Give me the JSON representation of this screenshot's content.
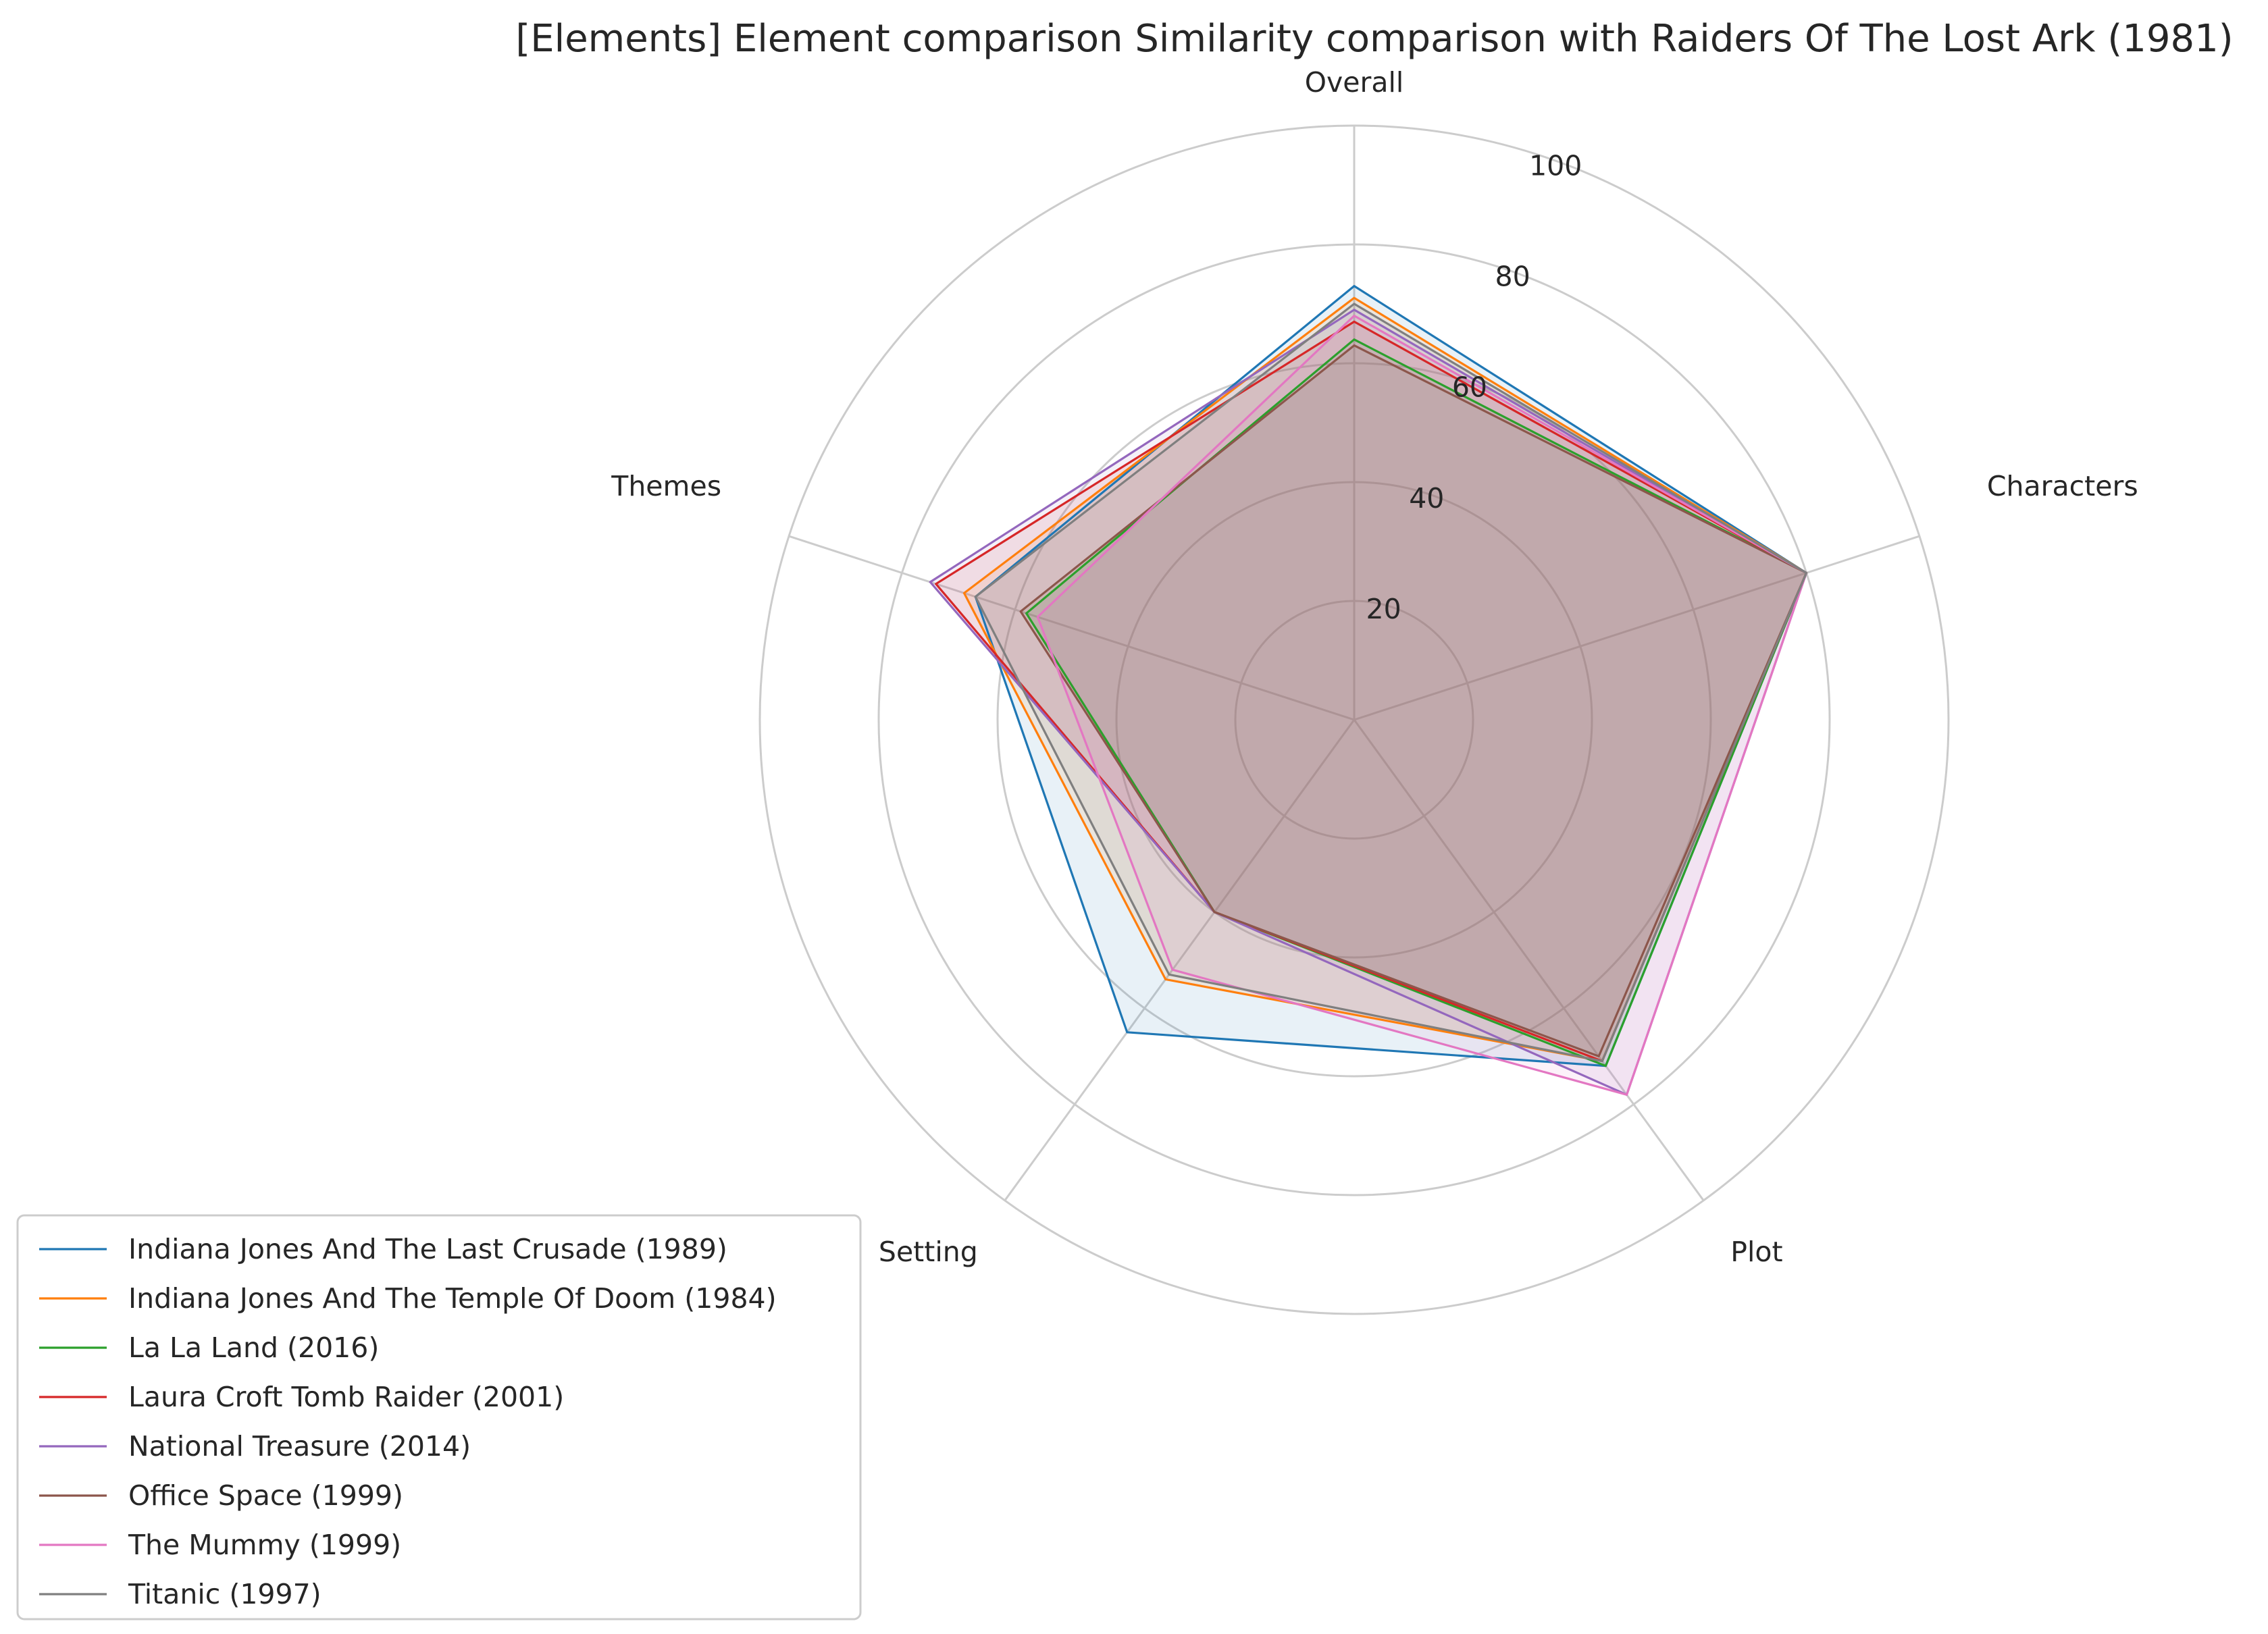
{
  "chart_data": {
    "type": "radar",
    "title": "[Elements] Element comparison Similarity comparison with Raiders Of The Lost Ark (1981)",
    "axes": [
      "Overall",
      "Characters",
      "Plot",
      "Setting",
      "Themes"
    ],
    "rlim": [
      0,
      100
    ],
    "radial_ticks": [
      "20",
      "40",
      "60",
      "80",
      "100"
    ],
    "radial_tick_values": [
      20,
      40,
      60,
      80,
      100
    ],
    "grid": true,
    "legend_position": "lower-left",
    "series": [
      {
        "name": "Indiana Jones And The Last Crusade (1989)",
        "color": "#1f77b4",
        "values": [
          73,
          80,
          72,
          65,
          67
        ]
      },
      {
        "name": "Indiana Jones And The Temple Of Doom (1984)",
        "color": "#ff7f0e",
        "values": [
          71,
          80,
          71,
          54,
          69
        ]
      },
      {
        "name": "La La Land (2016)",
        "color": "#2ca02c",
        "values": [
          64,
          80,
          72,
          40,
          58
        ]
      },
      {
        "name": "Laura Croft Tomb Raider (2001)",
        "color": "#d62728",
        "values": [
          67,
          80,
          71,
          40,
          74
        ]
      },
      {
        "name": "National Treasure (2014)",
        "color": "#9467bd",
        "values": [
          69,
          80,
          78,
          40,
          75
        ]
      },
      {
        "name": "Office Space (1999)",
        "color": "#8c564b",
        "values": [
          63,
          80,
          70,
          40,
          59
        ]
      },
      {
        "name": "The Mummy (1999)",
        "color": "#e377c2",
        "values": [
          68,
          80,
          78,
          52,
          56
        ]
      },
      {
        "name": "Titanic (1997)",
        "color": "#7f7f7f",
        "values": [
          70,
          80,
          71,
          53,
          67
        ]
      }
    ]
  }
}
